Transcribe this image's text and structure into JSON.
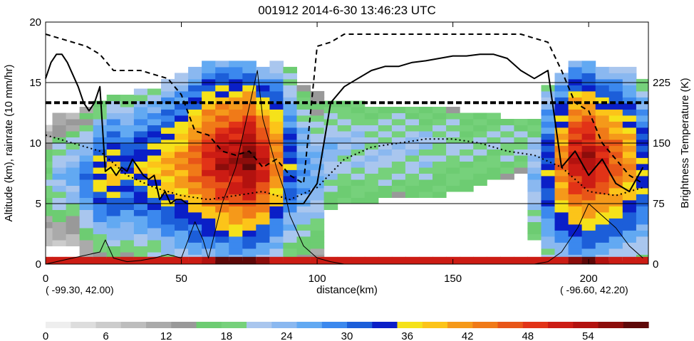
{
  "chart_data": {
    "type": "heatmap",
    "title": "001912 2014-6-30 13:46:23 UTC",
    "xlabel": "distance(km)",
    "ylabel_left": "Altitude (km), rainrate (10 mm/hr)",
    "ylabel_right": "Brightness Temperature (K)",
    "xlim": [
      0,
      222
    ],
    "ylim_left": [
      0,
      20
    ],
    "ylim_right": [
      0,
      300
    ],
    "x_ticks": [
      "0",
      "50",
      "100",
      "150",
      "200"
    ],
    "y_ticks_left": [
      "0",
      "5",
      "10",
      "15",
      "20"
    ],
    "y_ticks_right": [
      "0",
      "75",
      "150",
      "225"
    ],
    "start_coord": "( -99.30, 42.00)",
    "end_coord": "( -96.60, 42.20)",
    "colorbar": {
      "range": [
        0,
        60
      ],
      "tick_labels": [
        "0",
        "6",
        "12",
        "18",
        "24",
        "30",
        "36",
        "42",
        "48",
        "54"
      ],
      "colors": [
        "#eeeeee",
        "#dddddd",
        "#cccccc",
        "#bdbdbd",
        "#aaaaaa",
        "#999999",
        "#6dcc72",
        "#76d17b",
        "#a9c6ee",
        "#8ab8f0",
        "#62a9f2",
        "#3b88ee",
        "#1c5ed9",
        "#0a1fc7",
        "#f5e21a",
        "#fcc419",
        "#f5991a",
        "#f07a18",
        "#e85518",
        "#e23317",
        "#cc1c14",
        "#b3120f",
        "#8c0d0b",
        "#5e0808"
      ]
    },
    "heatmap_columns": [
      {
        "x": 0,
        "top": 11.5,
        "bottom": 1.5,
        "peak": 20,
        "low": 6
      },
      {
        "x": 5,
        "top": 12.5,
        "bottom": 1.5,
        "peak": 24,
        "low": 8
      },
      {
        "x": 10,
        "top": 12.5,
        "bottom": 1.5,
        "peak": 26,
        "low": 8
      },
      {
        "x": 15,
        "top": 13.0,
        "bottom": 0.5,
        "peak": 30,
        "low": 10
      },
      {
        "x": 20,
        "top": 13.5,
        "bottom": 0.5,
        "peak": 36,
        "low": 14
      },
      {
        "x": 25,
        "top": 14.0,
        "bottom": 0.5,
        "peak": 38,
        "low": 16
      },
      {
        "x": 30,
        "top": 14.0,
        "bottom": 0.5,
        "peak": 34,
        "low": 16
      },
      {
        "x": 35,
        "top": 14.5,
        "bottom": 0.5,
        "peak": 36,
        "low": 18
      },
      {
        "x": 40,
        "top": 14.5,
        "bottom": 0.5,
        "peak": 38,
        "low": 18
      },
      {
        "x": 45,
        "top": 15.0,
        "bottom": 0.3,
        "peak": 40,
        "low": 20
      },
      {
        "x": 50,
        "top": 15.5,
        "bottom": 0.3,
        "peak": 42,
        "low": 20
      },
      {
        "x": 55,
        "top": 16.0,
        "bottom": 0.3,
        "peak": 46,
        "low": 22
      },
      {
        "x": 60,
        "top": 16.5,
        "bottom": 0.3,
        "peak": 50,
        "low": 24
      },
      {
        "x": 65,
        "top": 16.5,
        "bottom": 0.3,
        "peak": 54,
        "low": 24
      },
      {
        "x": 70,
        "top": 16.5,
        "bottom": 0.3,
        "peak": 55,
        "low": 24
      },
      {
        "x": 75,
        "top": 16.5,
        "bottom": 0.3,
        "peak": 58,
        "low": 24
      },
      {
        "x": 80,
        "top": 16.0,
        "bottom": 0.3,
        "peak": 52,
        "low": 22
      },
      {
        "x": 85,
        "top": 16.5,
        "bottom": 0.3,
        "peak": 44,
        "low": 20
      },
      {
        "x": 90,
        "top": 16.0,
        "bottom": 0.3,
        "peak": 34,
        "low": 16
      },
      {
        "x": 95,
        "top": 14.5,
        "bottom": 0.3,
        "peak": 28,
        "low": 14
      },
      {
        "x": 100,
        "top": 14.0,
        "bottom": 0.3,
        "peak": 26,
        "low": 12
      },
      {
        "x": 105,
        "top": 13.5,
        "bottom": 4.5,
        "peak": 24,
        "low": 16
      },
      {
        "x": 110,
        "top": 13.5,
        "bottom": 5.0,
        "peak": 22,
        "low": 16
      },
      {
        "x": 115,
        "top": 13.5,
        "bottom": 5.0,
        "peak": 22,
        "low": 16
      },
      {
        "x": 120,
        "top": 13.0,
        "bottom": 5.0,
        "peak": 22,
        "low": 16
      },
      {
        "x": 125,
        "top": 13.0,
        "bottom": 5.5,
        "peak": 22,
        "low": 16
      },
      {
        "x": 130,
        "top": 13.0,
        "bottom": 5.5,
        "peak": 22,
        "low": 16
      },
      {
        "x": 135,
        "top": 13.0,
        "bottom": 5.5,
        "peak": 22,
        "low": 16
      },
      {
        "x": 140,
        "top": 13.0,
        "bottom": 5.5,
        "peak": 22,
        "low": 16
      },
      {
        "x": 145,
        "top": 13.0,
        "bottom": 5.5,
        "peak": 20,
        "low": 16
      },
      {
        "x": 150,
        "top": 13.0,
        "bottom": 6.0,
        "peak": 20,
        "low": 16
      },
      {
        "x": 155,
        "top": 12.5,
        "bottom": 6.0,
        "peak": 20,
        "low": 16
      },
      {
        "x": 160,
        "top": 12.5,
        "bottom": 6.5,
        "peak": 20,
        "low": 16
      },
      {
        "x": 165,
        "top": 12.5,
        "bottom": 7.0,
        "peak": 20,
        "low": 16
      },
      {
        "x": 170,
        "top": 12.0,
        "bottom": 7.0,
        "peak": 20,
        "low": 16
      },
      {
        "x": 175,
        "top": 12.0,
        "bottom": 7.5,
        "peak": 20,
        "low": 16
      },
      {
        "x": 180,
        "top": 12.0,
        "bottom": 2.0,
        "peak": 24,
        "low": 16
      },
      {
        "x": 185,
        "top": 14.5,
        "bottom": 0.3,
        "peak": 34,
        "low": 20
      },
      {
        "x": 190,
        "top": 15.5,
        "bottom": 0.3,
        "peak": 44,
        "low": 22
      },
      {
        "x": 195,
        "top": 16.5,
        "bottom": 0.3,
        "peak": 52,
        "low": 24
      },
      {
        "x": 200,
        "top": 16.5,
        "bottom": 0.3,
        "peak": 54,
        "low": 24
      },
      {
        "x": 205,
        "top": 16.0,
        "bottom": 0.3,
        "peak": 50,
        "low": 22
      },
      {
        "x": 210,
        "top": 16.0,
        "bottom": 0.3,
        "peak": 46,
        "low": 22
      },
      {
        "x": 215,
        "top": 16.0,
        "bottom": 0.3,
        "peak": 42,
        "low": 20
      },
      {
        "x": 220,
        "top": 15.0,
        "bottom": 0.3,
        "peak": 36,
        "low": 18
      }
    ],
    "hlines_left": [
      5,
      10,
      15
    ],
    "series": [
      {
        "style": "solid",
        "axis": "right",
        "x": [
          0,
          2,
          4,
          6,
          8,
          10,
          12,
          14,
          16,
          18,
          20,
          22,
          24,
          26,
          28,
          30,
          32,
          34,
          36,
          38,
          40,
          42,
          44,
          46,
          48,
          50,
          52,
          54,
          56,
          58,
          60,
          65,
          70,
          75,
          80,
          85,
          90,
          95,
          100,
          105,
          110,
          115,
          120,
          125,
          130,
          135,
          140,
          145,
          150,
          155,
          160,
          165,
          170,
          175,
          180,
          185,
          190,
          195,
          200,
          205,
          210,
          215,
          220
        ],
        "y": [
          230,
          250,
          260,
          260,
          250,
          235,
          220,
          200,
          190,
          200,
          220,
          115,
          120,
          110,
          120,
          115,
          130,
          120,
          110,
          105,
          110,
          80,
          90,
          75,
          80,
          80,
          75,
          75,
          75,
          75,
          75,
          75,
          75,
          75,
          75,
          75,
          75,
          75,
          100,
          200,
          220,
          230,
          240,
          245,
          245,
          250,
          252,
          255,
          258,
          258,
          260,
          260,
          255,
          240,
          230,
          240,
          120,
          140,
          110,
          130,
          100,
          90,
          120
        ]
      },
      {
        "style": "dashed",
        "axis": "right",
        "x": [
          0,
          5,
          10,
          15,
          20,
          25,
          30,
          35,
          40,
          45,
          50,
          55,
          60,
          65,
          70,
          75,
          80,
          85,
          90,
          95,
          100,
          105,
          110,
          115,
          120,
          130,
          140,
          150,
          160,
          170,
          175,
          180,
          185,
          190,
          195,
          200,
          205,
          210,
          215,
          220
        ],
        "y": [
          285,
          280,
          275,
          270,
          260,
          240,
          240,
          240,
          235,
          230,
          210,
          165,
          160,
          140,
          135,
          140,
          120,
          130,
          110,
          100,
          270,
          275,
          285,
          285,
          285,
          285,
          285,
          285,
          285,
          285,
          285,
          280,
          275,
          240,
          200,
          190,
          150,
          130,
          110,
          100
        ]
      },
      {
        "style": "dotted",
        "axis": "right",
        "x": [
          0,
          10,
          20,
          30,
          40,
          50,
          60,
          70,
          80,
          90,
          100,
          110,
          120,
          130,
          140,
          150,
          160,
          170,
          180,
          190,
          200,
          210,
          220
        ],
        "y": [
          160,
          150,
          140,
          110,
          95,
          85,
          80,
          85,
          90,
          80,
          95,
          130,
          145,
          150,
          155,
          155,
          150,
          140,
          135,
          120,
          90,
          85,
          95
        ]
      },
      {
        "style": "thick-dashed",
        "axis": "right",
        "x": [
          0,
          222
        ],
        "y": [
          200,
          200
        ]
      },
      {
        "style": "thin-solid",
        "axis": "left",
        "x": [
          0,
          10,
          20,
          22,
          25,
          30,
          35,
          40,
          45,
          50,
          55,
          58,
          60,
          65,
          70,
          72,
          75,
          78,
          80,
          85,
          88,
          90,
          95,
          100,
          105,
          110,
          150,
          180,
          185,
          190,
          193,
          196,
          200,
          205,
          210,
          215,
          220
        ],
        "y": [
          0,
          0.5,
          1,
          2,
          0.5,
          0.2,
          0.3,
          0.5,
          0.8,
          0.5,
          3.5,
          2,
          0.5,
          5,
          8,
          10,
          13,
          16,
          12,
          8,
          6,
          4,
          1.5,
          0.5,
          0.2,
          0,
          0,
          0,
          0.2,
          1,
          2,
          3,
          5,
          4,
          3,
          1.5,
          0.5
        ]
      }
    ]
  }
}
